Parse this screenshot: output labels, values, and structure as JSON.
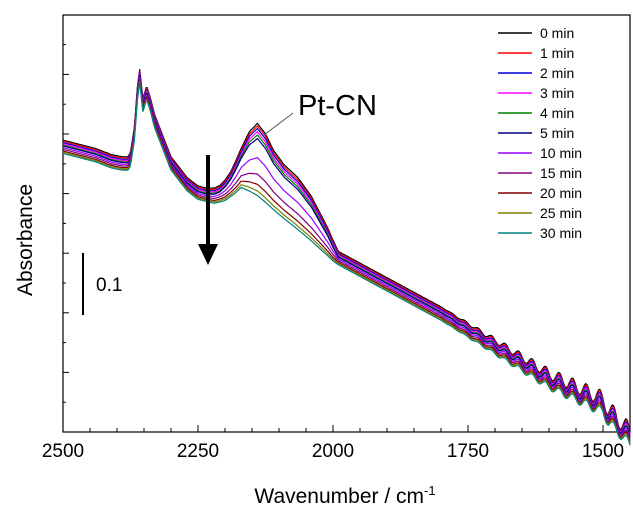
{
  "chart_data": {
    "type": "line",
    "title": "",
    "xlabel": "Wavenumber / cm",
    "xlabel_superscript": "-1",
    "ylabel": "Absorbance",
    "x_reversed": true,
    "xlim": [
      2500,
      1450
    ],
    "ylim": [
      0,
      1
    ],
    "y_tick_labels_shown": false,
    "x_ticks": [
      2500,
      2250,
      2000,
      1750,
      1500
    ],
    "x_tick_labels": [
      "2500",
      "2250",
      "2000",
      "1750",
      "1500"
    ],
    "grid": false,
    "legend_position": "top-right",
    "annotations": {
      "peak_label": "Pt-CN",
      "peak_wavenumber": 2140,
      "scale_bar_label": "0.1",
      "arrow_direction": "down"
    },
    "series": [
      {
        "name": "0 min",
        "color": "#000000",
        "time_min": 0
      },
      {
        "name": "1 min",
        "color": "#ff0000",
        "time_min": 1
      },
      {
        "name": "2 min",
        "color": "#0000dd",
        "time_min": 2
      },
      {
        "name": "3 min",
        "color": "#ff00ff",
        "time_min": 3
      },
      {
        "name": "4 min",
        "color": "#008000",
        "time_min": 4
      },
      {
        "name": "5 min",
        "color": "#000080",
        "time_min": 5
      },
      {
        "name": "10 min",
        "color": "#9900ff",
        "time_min": 10
      },
      {
        "name": "15 min",
        "color": "#800080",
        "time_min": 15
      },
      {
        "name": "20 min",
        "color": "#800000",
        "time_min": 20
      },
      {
        "name": "25 min",
        "color": "#808000",
        "time_min": 25
      },
      {
        "name": "30 min",
        "color": "#008080",
        "time_min": 30
      }
    ],
    "baseline_wavenumber": [
      2500,
      2470,
      2440,
      2410,
      2390,
      2380,
      2375,
      2368,
      2362,
      2358,
      2352,
      2345,
      2338,
      2330,
      2300,
      2270,
      2250,
      2220,
      2200,
      2180,
      2170,
      2000,
      1800,
      1600,
      1500,
      1490,
      1470,
      1450
    ],
    "baseline_absorbance": [
      0.7,
      0.69,
      0.68,
      0.665,
      0.66,
      0.66,
      0.67,
      0.73,
      0.83,
      0.87,
      0.8,
      0.83,
      0.8,
      0.76,
      0.66,
      0.61,
      0.59,
      0.58,
      0.585,
      0.6,
      0.61,
      0.44,
      0.3,
      0.14,
      0.08,
      0.055,
      0.03,
      0.0
    ],
    "pt_cn_band_wavenumber": [
      2235,
      2210,
      2190,
      2170,
      2155,
      2140,
      2125,
      2110,
      2090,
      2065,
      2040,
      2010,
      1990
    ],
    "pt_cn_band_0min": [
      0.0,
      0.008,
      0.03,
      0.07,
      0.125,
      0.16,
      0.15,
      0.125,
      0.11,
      0.105,
      0.085,
      0.04,
      0.0
    ],
    "pt_cn_band_scale": [
      1.0,
      0.98,
      0.96,
      0.93,
      0.9,
      0.86,
      0.6,
      0.38,
      0.25,
      0.17,
      0.12
    ],
    "series_offset": [
      0.0,
      -0.003,
      -0.006,
      -0.009,
      -0.012,
      -0.014,
      -0.018,
      -0.022,
      -0.026,
      -0.029,
      -0.032
    ],
    "fine_structure_range": [
      1800,
      1450
    ],
    "fine_structure_amplitude": 0.022,
    "fine_structure_period": 25
  }
}
